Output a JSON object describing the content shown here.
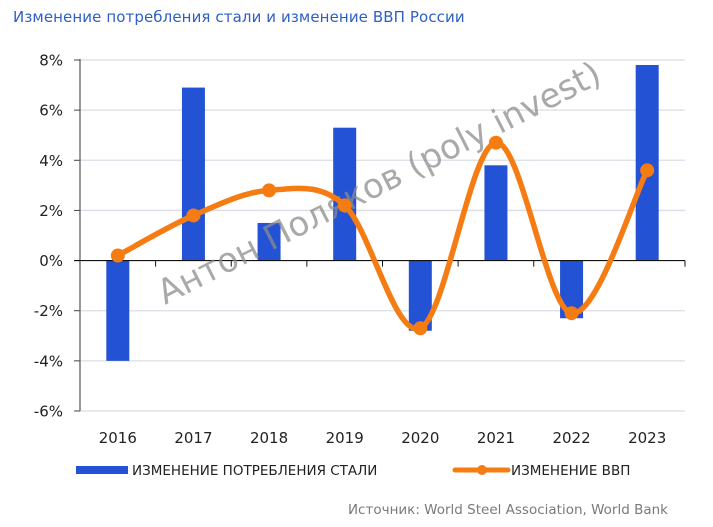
{
  "title": "Изменение потребления стали и изменение ВВП России",
  "source": "Источник: World Steel Association, World Bank",
  "watermark": "Антон Поляков (poly invest)",
  "colors": {
    "steel": "#2352d4",
    "gdp": "#f57c12",
    "title": "#2d5fc4",
    "grid": "#dcdde6"
  },
  "chart_data": {
    "type": "bar+line",
    "title": "Изменение потребления стали и изменение ВВП России",
    "xlabel": "",
    "ylabel": "",
    "categories": [
      "2016",
      "2017",
      "2018",
      "2019",
      "2020",
      "2021",
      "2022",
      "2023"
    ],
    "y_ticks": [
      "8%",
      "6%",
      "4%",
      "2%",
      "0%",
      "-2%",
      "-4%",
      "-6%"
    ],
    "ylim": [
      -6,
      8
    ],
    "grid": true,
    "legend_position": "bottom",
    "series": [
      {
        "name": "ИЗМЕНЕНИЕ ПОТРЕБЛЕНИЯ СТАЛИ",
        "type": "bar",
        "color": "#2352d4",
        "values": [
          -4.0,
          6.9,
          1.5,
          5.3,
          -2.8,
          3.8,
          -2.3,
          7.8
        ]
      },
      {
        "name": "ИЗМЕНЕНИЕ ВВП",
        "type": "line",
        "smooth": true,
        "markers": true,
        "color": "#f57c12",
        "values": [
          0.2,
          1.8,
          2.8,
          2.2,
          -2.7,
          4.7,
          -2.1,
          3.6
        ]
      }
    ]
  }
}
